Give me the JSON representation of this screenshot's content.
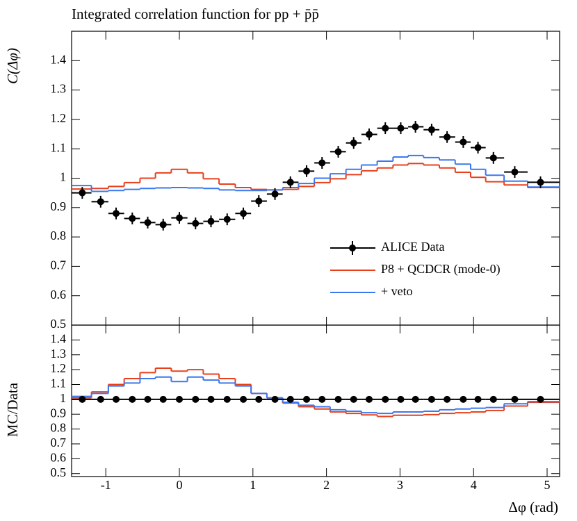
{
  "chart_data": [
    {
      "type": "histogram-ratio",
      "title": "Integrated correlation function for pp + p̄p̄",
      "ylabel": "C(Δφ)",
      "xlim": [
        -1.465,
        5.17
      ],
      "ylim": [
        0.5,
        1.5
      ],
      "xticks": [
        -1,
        0,
        1,
        2,
        3,
        4,
        5
      ],
      "yticks": [
        0.5,
        0.6,
        0.7,
        0.8,
        0.9,
        1,
        1.1,
        1.2,
        1.3,
        1.4
      ],
      "legend": "lower right",
      "x": [
        -1.32,
        -1.07,
        -0.86,
        -0.64,
        -0.43,
        -0.22,
        0,
        0.22,
        0.43,
        0.65,
        0.87,
        1.08,
        1.3,
        1.51,
        1.73,
        1.94,
        2.16,
        2.37,
        2.58,
        2.8,
        3.01,
        3.21,
        3.43,
        3.64,
        3.86,
        4.06,
        4.27,
        4.56,
        4.91
      ],
      "series": [
        {
          "name": "ALICE Data",
          "color": "#000000",
          "style": "points",
          "values": [
            0.95,
            0.92,
            0.88,
            0.863,
            0.849,
            0.842,
            0.865,
            0.846,
            0.853,
            0.86,
            0.88,
            0.922,
            0.946,
            0.986,
            1.024,
            1.052,
            1.09,
            1.12,
            1.149,
            1.17,
            1.17,
            1.175,
            1.165,
            1.14,
            1.123,
            1.104,
            1.069,
            1.021,
            0.986
          ],
          "y_errors": [
            0.02,
            0.02,
            0.02,
            0.02,
            0.02,
            0.02,
            0.02,
            0.02,
            0.02,
            0.02,
            0.02,
            0.02,
            0.02,
            0.02,
            0.02,
            0.02,
            0.02,
            0.02,
            0.02,
            0.02,
            0.02,
            0.02,
            0.02,
            0.02,
            0.02,
            0.02,
            0.02,
            0.02,
            0.02
          ]
        },
        {
          "name": "P8 + QCDCR (mode-0)",
          "color": "#e8401c",
          "style": "step",
          "values": [
            0.963,
            0.965,
            0.972,
            0.985,
            1.0,
            1.018,
            1.03,
            1.018,
            0.998,
            0.98,
            0.968,
            0.962,
            0.96,
            0.962,
            0.972,
            0.985,
            0.998,
            1.012,
            1.025,
            1.035,
            1.045,
            1.05,
            1.045,
            1.035,
            1.02,
            1.003,
            0.988,
            0.977,
            0.968
          ]
        },
        {
          "name": "+ veto",
          "color": "#3a78f0",
          "style": "step",
          "values": [
            0.975,
            0.955,
            0.958,
            0.962,
            0.965,
            0.967,
            0.968,
            0.967,
            0.965,
            0.96,
            0.958,
            0.958,
            0.96,
            0.968,
            0.982,
            1.0,
            1.015,
            1.03,
            1.045,
            1.058,
            1.072,
            1.077,
            1.07,
            1.062,
            1.048,
            1.03,
            1.01,
            0.99,
            0.97
          ]
        }
      ]
    },
    {
      "type": "histogram-ratio",
      "xlabel": "Δφ (rad)",
      "ylabel": "MC/Data",
      "xlim": [
        -1.465,
        5.17
      ],
      "ylim": [
        0.48,
        1.5
      ],
      "xticks": [
        -1,
        0,
        1,
        2,
        3,
        4,
        5
      ],
      "yticks": [
        0.5,
        0.6,
        0.7,
        0.8,
        0.9,
        1,
        1.1,
        1.2,
        1.3,
        1.4
      ],
      "x": [
        -1.32,
        -1.07,
        -0.86,
        -0.64,
        -0.43,
        -0.22,
        0,
        0.22,
        0.43,
        0.65,
        0.87,
        1.08,
        1.3,
        1.51,
        1.73,
        1.94,
        2.16,
        2.37,
        2.58,
        2.8,
        3.01,
        3.21,
        3.43,
        3.64,
        3.86,
        4.06,
        4.27,
        4.56,
        4.91
      ],
      "series": [
        {
          "color": "#000000",
          "style": "points",
          "values": [
            1,
            1,
            1,
            1,
            1,
            1,
            1,
            1,
            1,
            1,
            1,
            1,
            1,
            1,
            1,
            1,
            1,
            1,
            1,
            1,
            1,
            1,
            1,
            1,
            1,
            1,
            1,
            1,
            1
          ],
          "y_errors": [
            0.02,
            0.02,
            0.02,
            0.02,
            0.02,
            0.02,
            0.02,
            0.02,
            0.02,
            0.02,
            0.02,
            0.02,
            0.02,
            0.02,
            0.02,
            0.02,
            0.02,
            0.02,
            0.02,
            0.02,
            0.02,
            0.02,
            0.02,
            0.02,
            0.02,
            0.02,
            0.02,
            0.02,
            0.02
          ]
        },
        {
          "color": "#e8401c",
          "style": "step",
          "values": [
            1.01,
            1.05,
            1.1,
            1.14,
            1.18,
            1.21,
            1.19,
            1.2,
            1.17,
            1.14,
            1.1,
            1.04,
            1.01,
            0.975,
            0.95,
            0.935,
            0.915,
            0.905,
            0.895,
            0.885,
            0.893,
            0.893,
            0.897,
            0.905,
            0.91,
            0.915,
            0.925,
            0.955,
            0.98
          ]
        },
        {
          "color": "#3a78f0",
          "style": "step",
          "values": [
            1.02,
            1.04,
            1.09,
            1.11,
            1.14,
            1.15,
            1.12,
            1.15,
            1.13,
            1.11,
            1.09,
            1.04,
            1.01,
            0.98,
            0.96,
            0.95,
            0.93,
            0.92,
            0.91,
            0.905,
            0.915,
            0.915,
            0.92,
            0.93,
            0.935,
            0.94,
            0.945,
            0.97,
            0.985
          ]
        }
      ]
    }
  ]
}
